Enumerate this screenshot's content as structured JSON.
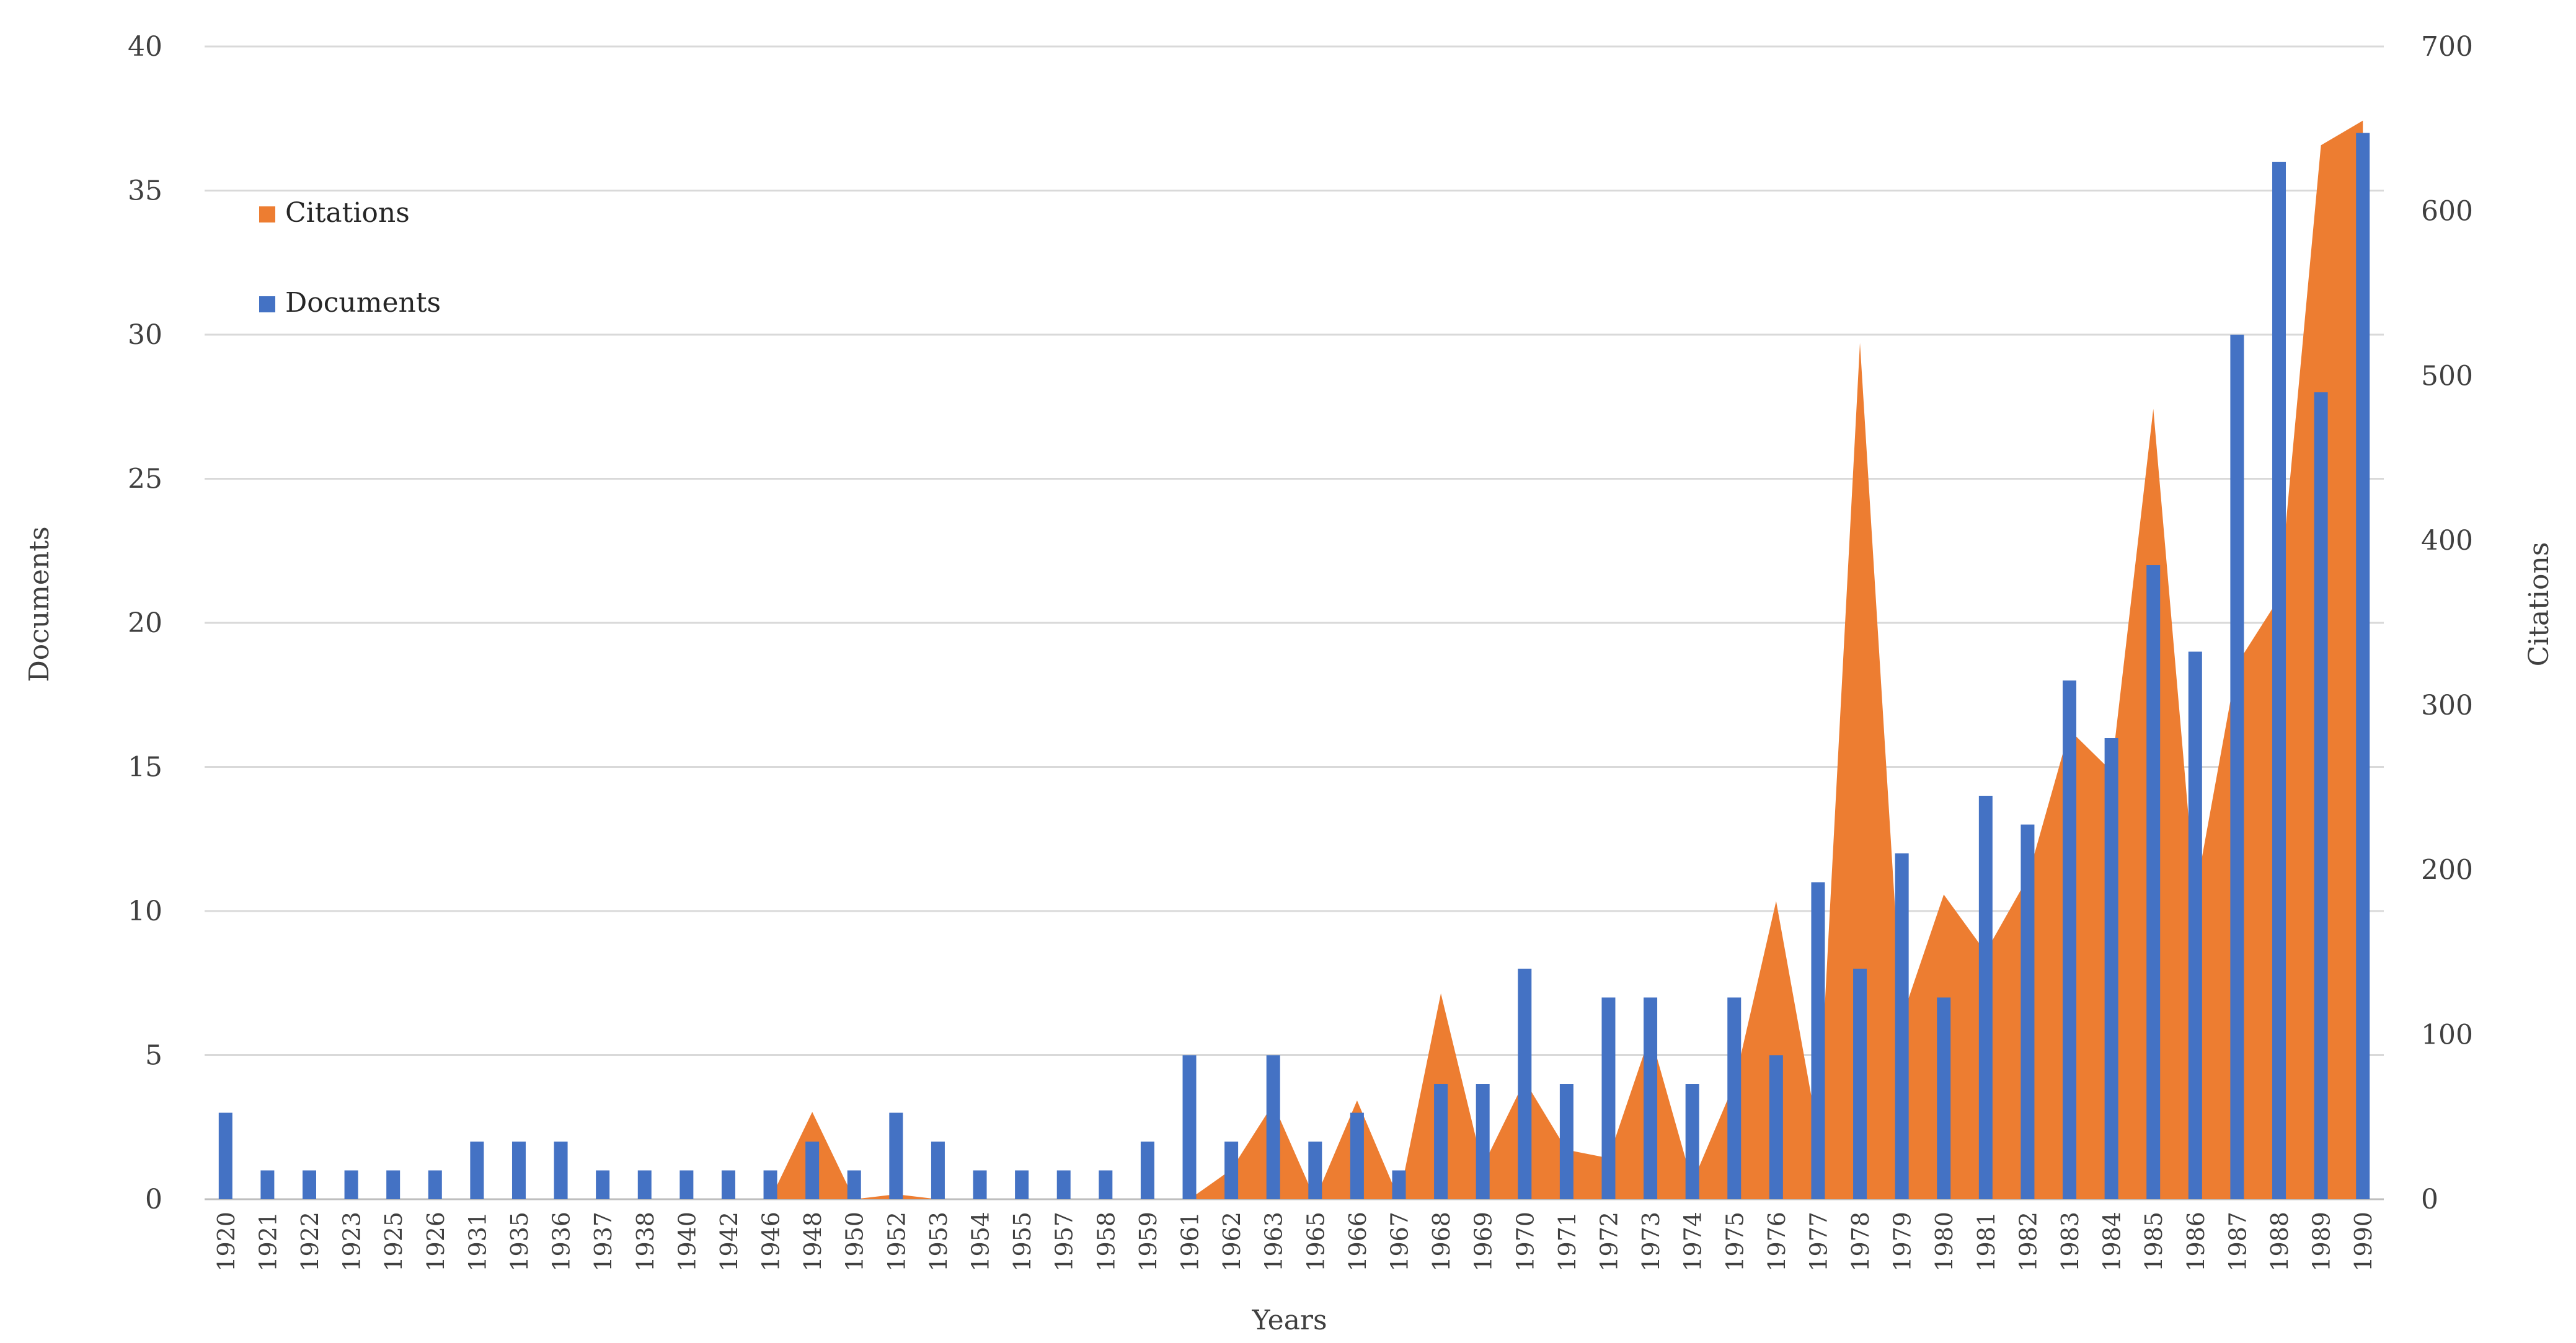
{
  "chart_data": {
    "type": "bar+area",
    "title": "",
    "xlabel": "Years",
    "ylabel": "Documents",
    "y2label": "Citations",
    "ylim": [
      0,
      40
    ],
    "y2lim": [
      0,
      700
    ],
    "yticks": [
      "0",
      "5",
      "10",
      "15",
      "20",
      "25",
      "30",
      "35",
      "40"
    ],
    "y2ticks": [
      "0",
      "100",
      "200",
      "300",
      "400",
      "500",
      "600",
      "700"
    ],
    "grid": true,
    "legend_position": "top-left",
    "categories": [
      "1920",
      "1921",
      "1922",
      "1923",
      "1925",
      "1926",
      "1931",
      "1935",
      "1936",
      "1937",
      "1938",
      "1940",
      "1942",
      "1946",
      "1948",
      "1950",
      "1952",
      "1953",
      "1954",
      "1955",
      "1957",
      "1958",
      "1959",
      "1961",
      "1962",
      "1963",
      "1965",
      "1966",
      "1967",
      "1968",
      "1969",
      "1970",
      "1971",
      "1972",
      "1973",
      "1974",
      "1975",
      "1976",
      "1977",
      "1978",
      "1979",
      "1980",
      "1981",
      "1982",
      "1983",
      "1984",
      "1985",
      "1986",
      "1987",
      "1988",
      "1989",
      "1990"
    ],
    "series": [
      {
        "name": "Citations",
        "type": "area",
        "axis": "right",
        "color": "#ED7D31",
        "values": [
          0,
          0,
          0,
          0,
          0,
          0,
          0,
          0,
          0,
          0,
          0,
          0,
          0,
          0,
          53,
          0,
          3,
          0,
          0,
          0,
          0,
          0,
          0,
          0,
          18,
          58,
          0,
          60,
          0,
          125,
          20,
          72,
          30,
          25,
          100,
          10,
          70,
          181,
          40,
          520,
          110,
          185,
          150,
          195,
          285,
          260,
          480,
          185,
          325,
          365,
          640,
          655
        ]
      },
      {
        "name": "Documents",
        "type": "bar",
        "axis": "left",
        "color": "#4472C4",
        "values": [
          3,
          1,
          1,
          1,
          1,
          1,
          2,
          2,
          2,
          1,
          1,
          1,
          1,
          1,
          2,
          1,
          3,
          2,
          1,
          1,
          1,
          1,
          2,
          5,
          2,
          5,
          2,
          3,
          1,
          4,
          4,
          8,
          4,
          7,
          7,
          4,
          7,
          5,
          11,
          8,
          12,
          7,
          14,
          13,
          18,
          16,
          22,
          19,
          30,
          36,
          28,
          37
        ]
      }
    ]
  }
}
